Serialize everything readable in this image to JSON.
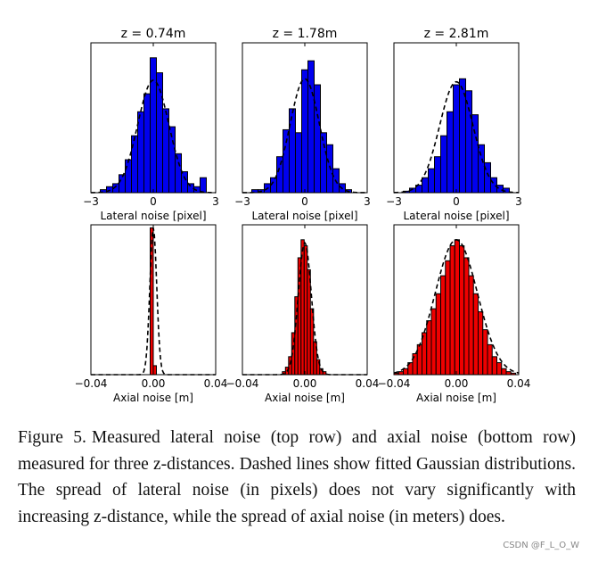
{
  "chart_data": [
    {
      "type": "bar",
      "row": "lateral",
      "title": "z = 0.74m",
      "xlabel": "Lateral noise [pixel]",
      "xlim": [
        -3,
        3
      ],
      "xticks": [
        "−3",
        "0",
        "3"
      ],
      "bins": [
        -2.4,
        -2.1,
        -1.8,
        -1.5,
        -1.2,
        -0.9,
        -0.6,
        -0.3,
        0,
        0.3,
        0.6,
        0.9,
        1.2,
        1.5,
        1.8,
        2.1,
        2.4
      ],
      "bin_width": 0.3,
      "values": [
        2,
        4,
        6,
        12,
        22,
        38,
        54,
        66,
        90,
        80,
        56,
        44,
        26,
        14,
        6,
        4,
        10
      ],
      "fit": {
        "mean": 0.0,
        "sd": 0.75,
        "peak": 75
      },
      "ylim": [
        0,
        100
      ],
      "color": "#0000ee"
    },
    {
      "type": "bar",
      "row": "lateral",
      "title": "z = 1.78m",
      "xlabel": "Lateral noise [pixel]",
      "xlim": [
        -3,
        3
      ],
      "xticks": [
        "−3",
        "0",
        "3"
      ],
      "bins": [
        -2.4,
        -2.1,
        -1.8,
        -1.5,
        -1.2,
        -0.9,
        -0.6,
        -0.3,
        0,
        0.3,
        0.6,
        0.9,
        1.2,
        1.5,
        1.8,
        2.1
      ],
      "bin_width": 0.3,
      "values": [
        2,
        2,
        6,
        10,
        24,
        42,
        56,
        40,
        82,
        88,
        72,
        40,
        32,
        16,
        6,
        2
      ],
      "fit": {
        "mean": 0.0,
        "sd": 0.7,
        "peak": 76
      },
      "ylim": [
        0,
        100
      ],
      "color": "#0000ee"
    },
    {
      "type": "bar",
      "row": "lateral",
      "title": "z = 2.81m",
      "xlabel": "Lateral noise [pixel]",
      "xlim": [
        -3,
        3
      ],
      "xticks": [
        "−3",
        "0",
        "3"
      ],
      "bins": [
        -2.4,
        -2.1,
        -1.8,
        -1.5,
        -1.2,
        -0.9,
        -0.6,
        -0.3,
        0,
        0.3,
        0.6,
        0.9,
        1.2,
        1.5,
        1.8,
        2.1,
        2.4
      ],
      "bin_width": 0.3,
      "values": [
        1,
        3,
        5,
        10,
        16,
        24,
        38,
        54,
        72,
        76,
        68,
        52,
        32,
        20,
        10,
        5,
        3
      ],
      "fit": {
        "mean": 0.0,
        "sd": 0.8,
        "peak": 74
      },
      "ylim": [
        0,
        100
      ],
      "color": "#0000ee"
    },
    {
      "type": "bar",
      "row": "axial",
      "xlabel": "Axial noise [m]",
      "xlim": [
        -0.04,
        0.04
      ],
      "xticks": [
        "−0.04",
        "0.00",
        "0.04"
      ],
      "bins": [
        -0.001,
        0.001
      ],
      "bin_width": 0.002,
      "values": [
        98,
        6
      ],
      "fit": {
        "mean": 0.0,
        "sd": 0.0022,
        "peak": 98
      },
      "ylim": [
        0,
        100
      ],
      "color": "#ee0000"
    },
    {
      "type": "bar",
      "row": "axial",
      "xlabel": "Axial noise [m]",
      "xlim": [
        -0.04,
        0.04
      ],
      "xticks": [
        "−0.04",
        "0.00",
        "0.04"
      ],
      "bins": [
        -0.0134,
        -0.0114,
        -0.0094,
        -0.0074,
        -0.0054,
        -0.0034,
        -0.0014,
        0.0006,
        0.0026,
        0.0046,
        0.0066,
        0.0086,
        0.0106,
        0.0126
      ],
      "bin_width": 0.002,
      "values": [
        2,
        5,
        12,
        28,
        52,
        78,
        90,
        86,
        70,
        44,
        22,
        10,
        4,
        2
      ],
      "fit": {
        "mean": 0.0,
        "sd": 0.0042,
        "peak": 88
      },
      "ylim": [
        0,
        100
      ],
      "color": "#ee0000"
    },
    {
      "type": "bar",
      "row": "axial",
      "xlabel": "Axial noise [m]",
      "xlim": [
        -0.04,
        0.04
      ],
      "xticks": [
        "−0.04",
        "0.00",
        "0.04"
      ],
      "bins": [
        -0.0385,
        -0.0355,
        -0.0325,
        -0.0295,
        -0.0265,
        -0.0235,
        -0.0205,
        -0.0175,
        -0.0145,
        -0.0115,
        -0.0085,
        -0.0055,
        -0.0025,
        0.0005,
        0.0035,
        0.0065,
        0.0095,
        0.0125,
        0.0155,
        0.0185,
        0.0215,
        0.0245,
        0.0275,
        0.0305,
        0.0335,
        0.0365
      ],
      "bin_width": 0.003,
      "values": [
        1,
        2,
        4,
        8,
        14,
        20,
        28,
        36,
        44,
        54,
        66,
        76,
        86,
        90,
        86,
        78,
        66,
        54,
        42,
        30,
        20,
        12,
        8,
        4,
        2,
        1
      ],
      "fit": {
        "mean": 0.0,
        "sd": 0.0135,
        "peak": 90
      },
      "ylim": [
        0,
        100
      ],
      "color": "#ee0000"
    }
  ],
  "caption": {
    "label": "Figure 5.",
    "text": "Measured lateral noise (top row) and axial noise (bottom row) measured for three z-distances. Dashed lines show fitted Gaussian distributions. The spread of lateral noise (in pixels) does not vary significantly with increasing z-distance, while the spread of axial noise (in meters) does."
  },
  "watermark": "CSDN @F_L_O_W"
}
